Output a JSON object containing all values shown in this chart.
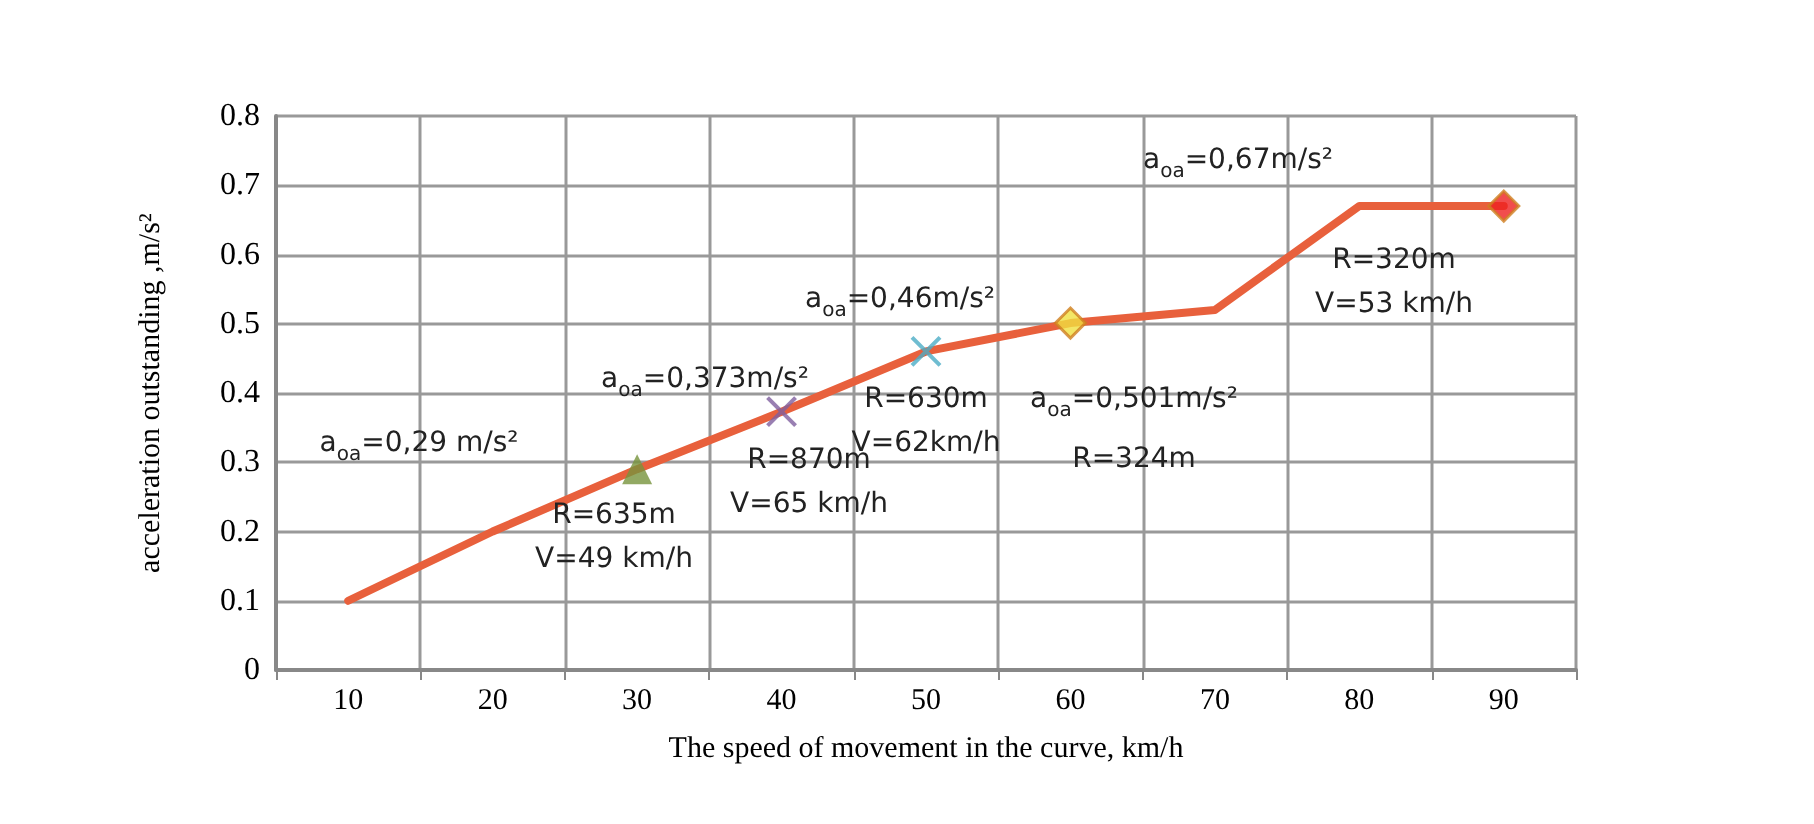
{
  "chart_data": {
    "type": "line",
    "xlabel": "The speed of movement in the curve, km/h",
    "ylabel": "acceleration outstanding ,m/s²",
    "categories": [
      "10",
      "20",
      "30",
      "40",
      "50",
      "60",
      "70",
      "80",
      "90"
    ],
    "ylim": [
      0,
      0.8
    ],
    "yticks": [
      0,
      0.1,
      0.2,
      0.3,
      0.4,
      0.5,
      0.6,
      0.7,
      0.8
    ],
    "grid": true,
    "series": [
      {
        "color": "#e8603c",
        "marker": "none",
        "values": [
          0.1,
          0.2,
          0.29,
          0.373,
          0.46,
          0.501,
          0.52,
          0.67,
          0.67
        ]
      },
      {
        "type": "scatter",
        "color": "#77933c",
        "marker": "triangle",
        "x": [
          "30"
        ],
        "values": [
          0.29
        ]
      },
      {
        "type": "scatter",
        "color": "#7f5f9f",
        "marker": "cross",
        "x": [
          "40"
        ],
        "values": [
          0.373
        ]
      },
      {
        "type": "scatter",
        "color": "#4bacc6",
        "marker": "cross",
        "x": [
          "50"
        ],
        "values": [
          0.46
        ]
      },
      {
        "type": "scatter",
        "color": "#f0e040",
        "marker": "diamond",
        "x": [
          "60"
        ],
        "values": [
          0.501
        ]
      },
      {
        "type": "scatter",
        "color": "#ee2020",
        "marker": "diamond",
        "x": [
          "90"
        ],
        "values": [
          0.67
        ]
      }
    ],
    "annotations": [
      "a$_{oa}$=0,29 m/s²",
      "a$_{oa}$=0,373m/s²",
      "a$_{oa}$=0,46m/s²",
      "a$_{oa}$=0,501m/s²",
      "a$_{oa}$=0,67m/s²",
      "R=635m\nV=49 km/h",
      "R=870m\nV=65 km/h",
      "R=630m\nV=62km/h",
      "R=324m",
      "R=320m\nV=53 km/h"
    ]
  }
}
